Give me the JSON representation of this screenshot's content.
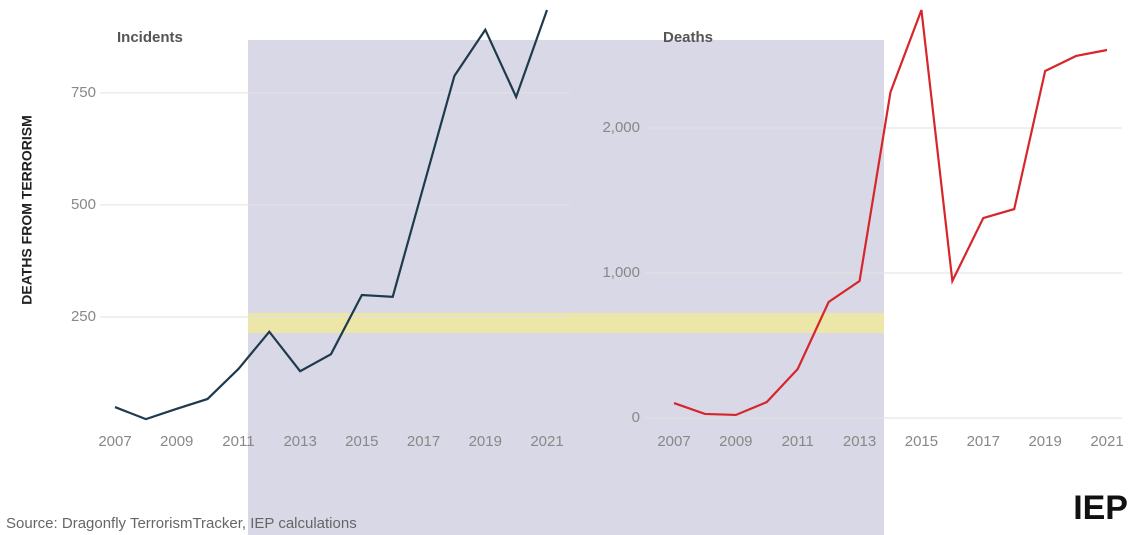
{
  "chart_data": [
    {
      "type": "line",
      "title": "Incidents",
      "y_label": "DEATHS FROM TERRORISM",
      "x": [
        2007,
        2008,
        2009,
        2010,
        2011,
        2012,
        2013,
        2014,
        2015,
        2016,
        2017,
        2018,
        2019,
        2020,
        2021
      ],
      "values": [
        49,
        22,
        45,
        67,
        134,
        217,
        129,
        167,
        299,
        295,
        542,
        788,
        891,
        741,
        935
      ],
      "color": "#1f3a4d",
      "xlim": [
        2007,
        2021
      ],
      "xticks": [
        2007,
        2009,
        2011,
        2013,
        2015,
        2017,
        2019,
        2021
      ],
      "ylim": [
        0,
        935
      ],
      "yticks": [
        250,
        500,
        750
      ],
      "grid": true
    },
    {
      "type": "line",
      "title": "Deaths",
      "x": [
        2007,
        2008,
        2009,
        2010,
        2011,
        2012,
        2013,
        2014,
        2015,
        2016,
        2017,
        2018,
        2019,
        2020,
        2021
      ],
      "values": [
        103,
        28,
        21,
        110,
        338,
        800,
        945,
        2248,
        2814,
        945,
        1379,
        1441,
        2393,
        2497,
        2538
      ],
      "color": "#d7262b",
      "xlim": [
        2007,
        2021
      ],
      "xticks": [
        2007,
        2009,
        2011,
        2013,
        2015,
        2017,
        2019,
        2021
      ],
      "ylim": [
        0,
        2814
      ],
      "yticks": [
        {
          "value": 0,
          "label": "0"
        },
        {
          "value": 1000,
          "label": "1,000"
        },
        {
          "value": 2000,
          "label": "2,000"
        }
      ],
      "grid": true
    }
  ],
  "source": "Source: Dragonfly TerrorismTracker, IEP calculations",
  "logo": "IEP"
}
